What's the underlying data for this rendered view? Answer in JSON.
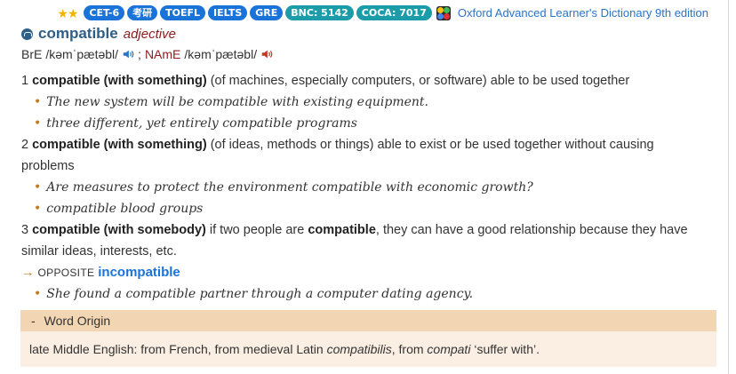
{
  "header": {
    "stars": "★★",
    "badges": [
      {
        "label": "CET-6",
        "color": "#1a73d9"
      },
      {
        "label": "考研",
        "color": "#1a73d9"
      },
      {
        "label": "TOEFL",
        "color": "#1a73d9"
      },
      {
        "label": "IELTS",
        "color": "#1a73d9"
      },
      {
        "label": "GRE",
        "color": "#1a73d9"
      },
      {
        "label": "BNC: 5142",
        "color": "#1b9ca8"
      },
      {
        "label": "COCA: 7017",
        "color": "#1b9ca8"
      }
    ],
    "dictionary": "Oxford Advanced Learner's Dictionary 9th edition"
  },
  "entry": {
    "headword": "compatible",
    "pos": "adjective",
    "bre_label": "BrE",
    "bre_ipa": "/kəmˈpætəbl/",
    "separator": ";",
    "name_label": "NAmE",
    "name_ipa": "/kəmˈpætəbl/"
  },
  "senses": [
    {
      "num": "1",
      "phrase": "compatible (with something)",
      "def": " (of machines, especially computers, or software) able to be used together",
      "examples": [
        "The new system will be compatible with existing equipment.",
        "three different, yet entirely compatible programs"
      ]
    },
    {
      "num": "2",
      "phrase": "compatible (with something)",
      "def": " (of ideas, methods or things) able to exist or be used together without causing problems",
      "examples": [
        "Are measures to protect the environment compatible with economic growth?",
        "compatible blood groups"
      ]
    },
    {
      "num": "3",
      "phrase": "compatible (with somebody)",
      "def_a": " if two people are ",
      "def_bold": "compatible",
      "def_b": ", they can have a good relationship because they have similar ideas, interests, etc.",
      "opposite_arrow": "→",
      "opposite_label": "OPPOSITE",
      "opposite_word": "incompatible",
      "examples": [
        "She found a compatible partner through a computer dating agency."
      ]
    }
  ],
  "origin": {
    "toggle": "-",
    "title": "Word Origin",
    "text_a": "late Middle English: from French, from medieval Latin ",
    "text_i1": "compatibilis",
    "text_b": ", from ",
    "text_i2": "compati",
    "text_c": " ‘suffer with’."
  },
  "colors": {
    "headword": "#2e5f87",
    "pos": "#8a1c1c",
    "bullet": "#c87a1b",
    "link": "#1a73d9",
    "origin_head_bg": "#f2d5b3",
    "origin_body_bg": "#fbefe3"
  }
}
